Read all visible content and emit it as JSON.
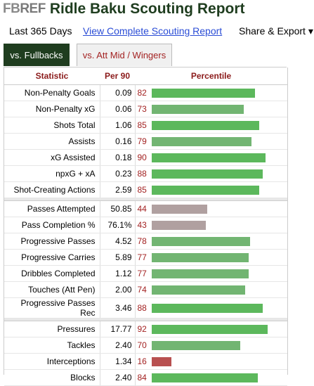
{
  "header": {
    "logo_fb": "FB",
    "logo_ref": "REF",
    "title": "Ridle Baku Scouting Report"
  },
  "links": {
    "period": "Last 365 Days",
    "full_report": "View Complete Scouting Report",
    "share": "Share & Export ▾"
  },
  "tabs": [
    {
      "label": "vs. Fullbacks",
      "active": true
    },
    {
      "label": "vs. Att Mid / Wingers",
      "active": false
    }
  ],
  "table": {
    "headers": {
      "statistic": "Statistic",
      "per90": "Per 90",
      "percentile": "Percentile"
    },
    "groups": [
      [
        {
          "stat": "Non-Penalty Goals",
          "per90": "0.09",
          "pct": 82
        },
        {
          "stat": "Non-Penalty xG",
          "per90": "0.06",
          "pct": 73
        },
        {
          "stat": "Shots Total",
          "per90": "1.06",
          "pct": 85
        },
        {
          "stat": "Assists",
          "per90": "0.16",
          "pct": 79
        },
        {
          "stat": "xG Assisted",
          "per90": "0.18",
          "pct": 90
        },
        {
          "stat": "npxG + xA",
          "per90": "0.23",
          "pct": 88
        },
        {
          "stat": "Shot-Creating Actions",
          "per90": "2.59",
          "pct": 85
        }
      ],
      [
        {
          "stat": "Passes Attempted",
          "per90": "50.85",
          "pct": 44
        },
        {
          "stat": "Pass Completion %",
          "per90": "76.1%",
          "pct": 43
        },
        {
          "stat": "Progressive Passes",
          "per90": "4.52",
          "pct": 78
        },
        {
          "stat": "Progressive Carries",
          "per90": "5.89",
          "pct": 77
        },
        {
          "stat": "Dribbles Completed",
          "per90": "1.12",
          "pct": 77
        },
        {
          "stat": "Touches (Att Pen)",
          "per90": "2.00",
          "pct": 74
        },
        {
          "stat": "Progressive Passes Rec",
          "per90": "3.46",
          "pct": 88
        }
      ],
      [
        {
          "stat": "Pressures",
          "per90": "17.77",
          "pct": 92
        },
        {
          "stat": "Tackles",
          "per90": "2.40",
          "pct": 70
        },
        {
          "stat": "Interceptions",
          "per90": "1.34",
          "pct": 16
        },
        {
          "stat": "Blocks",
          "per90": "2.40",
          "pct": 84
        }
      ]
    ]
  },
  "colors": {
    "high": "#5cb85c",
    "mid_high": "#72b572",
    "neutral": "#b0a0a0",
    "low": "#b85050",
    "title_green": "#1f3d1f",
    "header_red": "#8b1a1a"
  }
}
